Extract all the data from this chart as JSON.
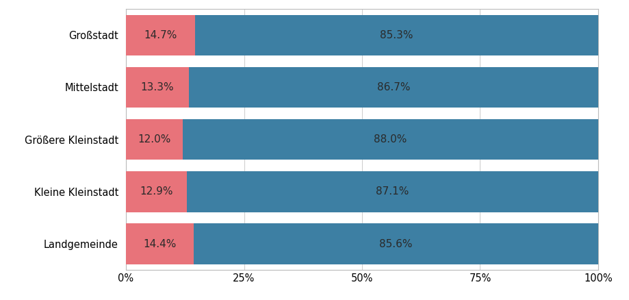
{
  "categories": [
    "Landgemeinde",
    "Kleine Kleinstadt",
    "Größere Kleinstadt",
    "Mittelstadt",
    "Großstadt"
  ],
  "female_pct": [
    14.4,
    12.9,
    12.0,
    13.3,
    14.7
  ],
  "male_pct": [
    85.6,
    87.1,
    88.0,
    86.7,
    85.3
  ],
  "female_color": "#e8737a",
  "male_color": "#3d7fa3",
  "bg_color": "#ffffff",
  "grid_color": "#d0d0d0",
  "text_color": "#2a2a2a",
  "bar_height": 0.78,
  "xlim": [
    0,
    100
  ],
  "xticks": [
    0,
    25,
    50,
    75,
    100
  ],
  "xticklabels": [
    "0%",
    "25%",
    "50%",
    "75%",
    "100%"
  ],
  "label_fontsize": 11,
  "tick_fontsize": 10.5
}
